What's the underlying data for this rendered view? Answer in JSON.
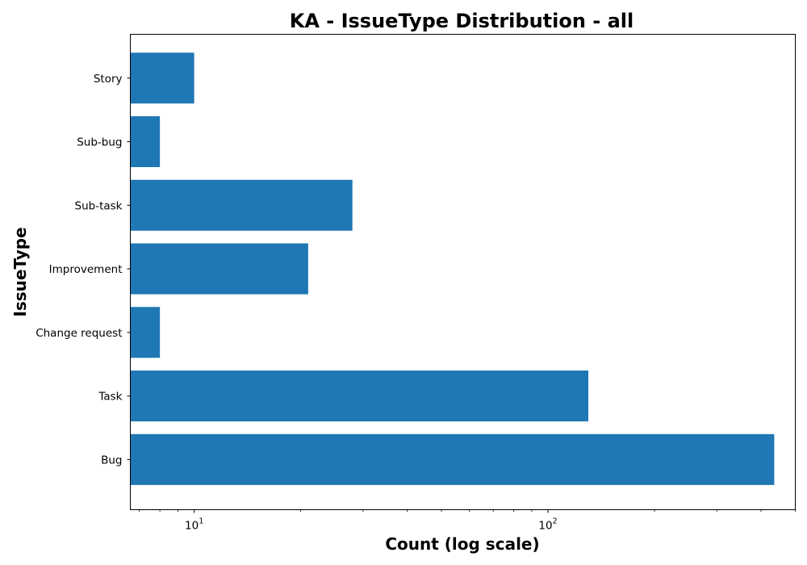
{
  "chart_data": {
    "type": "bar",
    "orientation": "horizontal",
    "title": "KA - IssueType Distribution - all",
    "xlabel": "Count (log scale)",
    "ylabel": "IssueType",
    "x_scale": "log",
    "xlim": [
      6.6,
      500
    ],
    "categories": [
      "Bug",
      "Task",
      "Change request",
      "Improvement",
      "Sub-task",
      "Sub-bug",
      "Story"
    ],
    "values": [
      436,
      130,
      8,
      21,
      28,
      8,
      10
    ],
    "x_ticks": [
      {
        "value": 10,
        "base": "10",
        "exp": "1"
      },
      {
        "value": 100,
        "base": "10",
        "exp": "2"
      }
    ],
    "bar_color": "#1f77b4",
    "grid": false,
    "legend": "none"
  }
}
